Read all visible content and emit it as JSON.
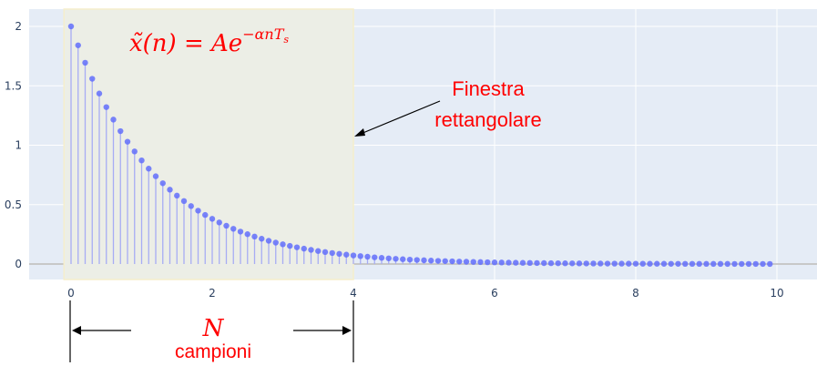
{
  "chart_data": {
    "type": "scatter",
    "style": "stem",
    "formula": {
      "lhs": "x̃(n) = Ae",
      "exponent": "−αnT",
      "exponent_subscript": "s"
    },
    "x_ticks": [
      "0",
      "2",
      "4",
      "6",
      "8",
      "10"
    ],
    "y_ticks": [
      "0",
      "0.5",
      "1",
      "1.5",
      "2"
    ],
    "xlim": [
      -0.6,
      10.4
    ],
    "ylim": [
      -0.15,
      2.1
    ],
    "window_range": [
      -0.1,
      4.0
    ],
    "samples": {
      "start": 0,
      "step": 0.1,
      "count": 100,
      "amplitude": 2,
      "decay_per_unit": 0.83
    },
    "annotations": {
      "window_label_line1": "Finestra",
      "window_label_line2": "rettangolare",
      "n_symbol": "N",
      "n_caption": "campioni"
    },
    "colors": {
      "plot_bg": "#e5ecf6",
      "grid": "#ffffff",
      "zeroline": "#c8c8c8",
      "marker": "#636efa",
      "stem": "#a7acf4",
      "window_fill": "#eceee6",
      "window_border": "#f5eecc",
      "annotation": "#ff0000",
      "arrow": "#000000"
    }
  }
}
